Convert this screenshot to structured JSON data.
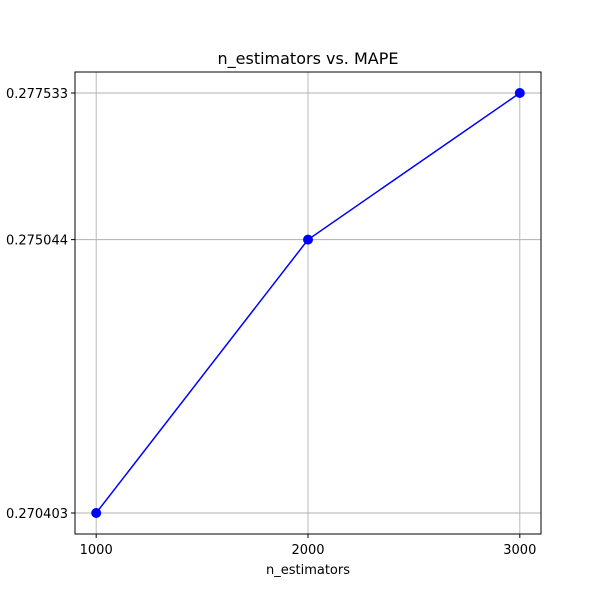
{
  "chart_data": {
    "type": "line",
    "title": "n_estimators vs. MAPE",
    "xlabel": "n_estimators",
    "ylabel": "",
    "x": [
      1000,
      2000,
      3000
    ],
    "series": [
      {
        "values": [
          0.270403,
          0.275044,
          0.277533
        ],
        "color": "#0000ff",
        "marker": "circle"
      }
    ],
    "xticks": [
      1000,
      2000,
      3000
    ],
    "xtick_labels": [
      "1000",
      "2000",
      "3000"
    ],
    "yticks": [
      0.270403,
      0.275044,
      0.277533
    ],
    "ytick_labels": [
      "0.270403",
      "0.275044",
      "0.277533"
    ],
    "xlim": [
      900,
      3100
    ],
    "ylim": [
      0.2700465,
      0.2778895
    ],
    "grid": true,
    "legend": "none"
  }
}
